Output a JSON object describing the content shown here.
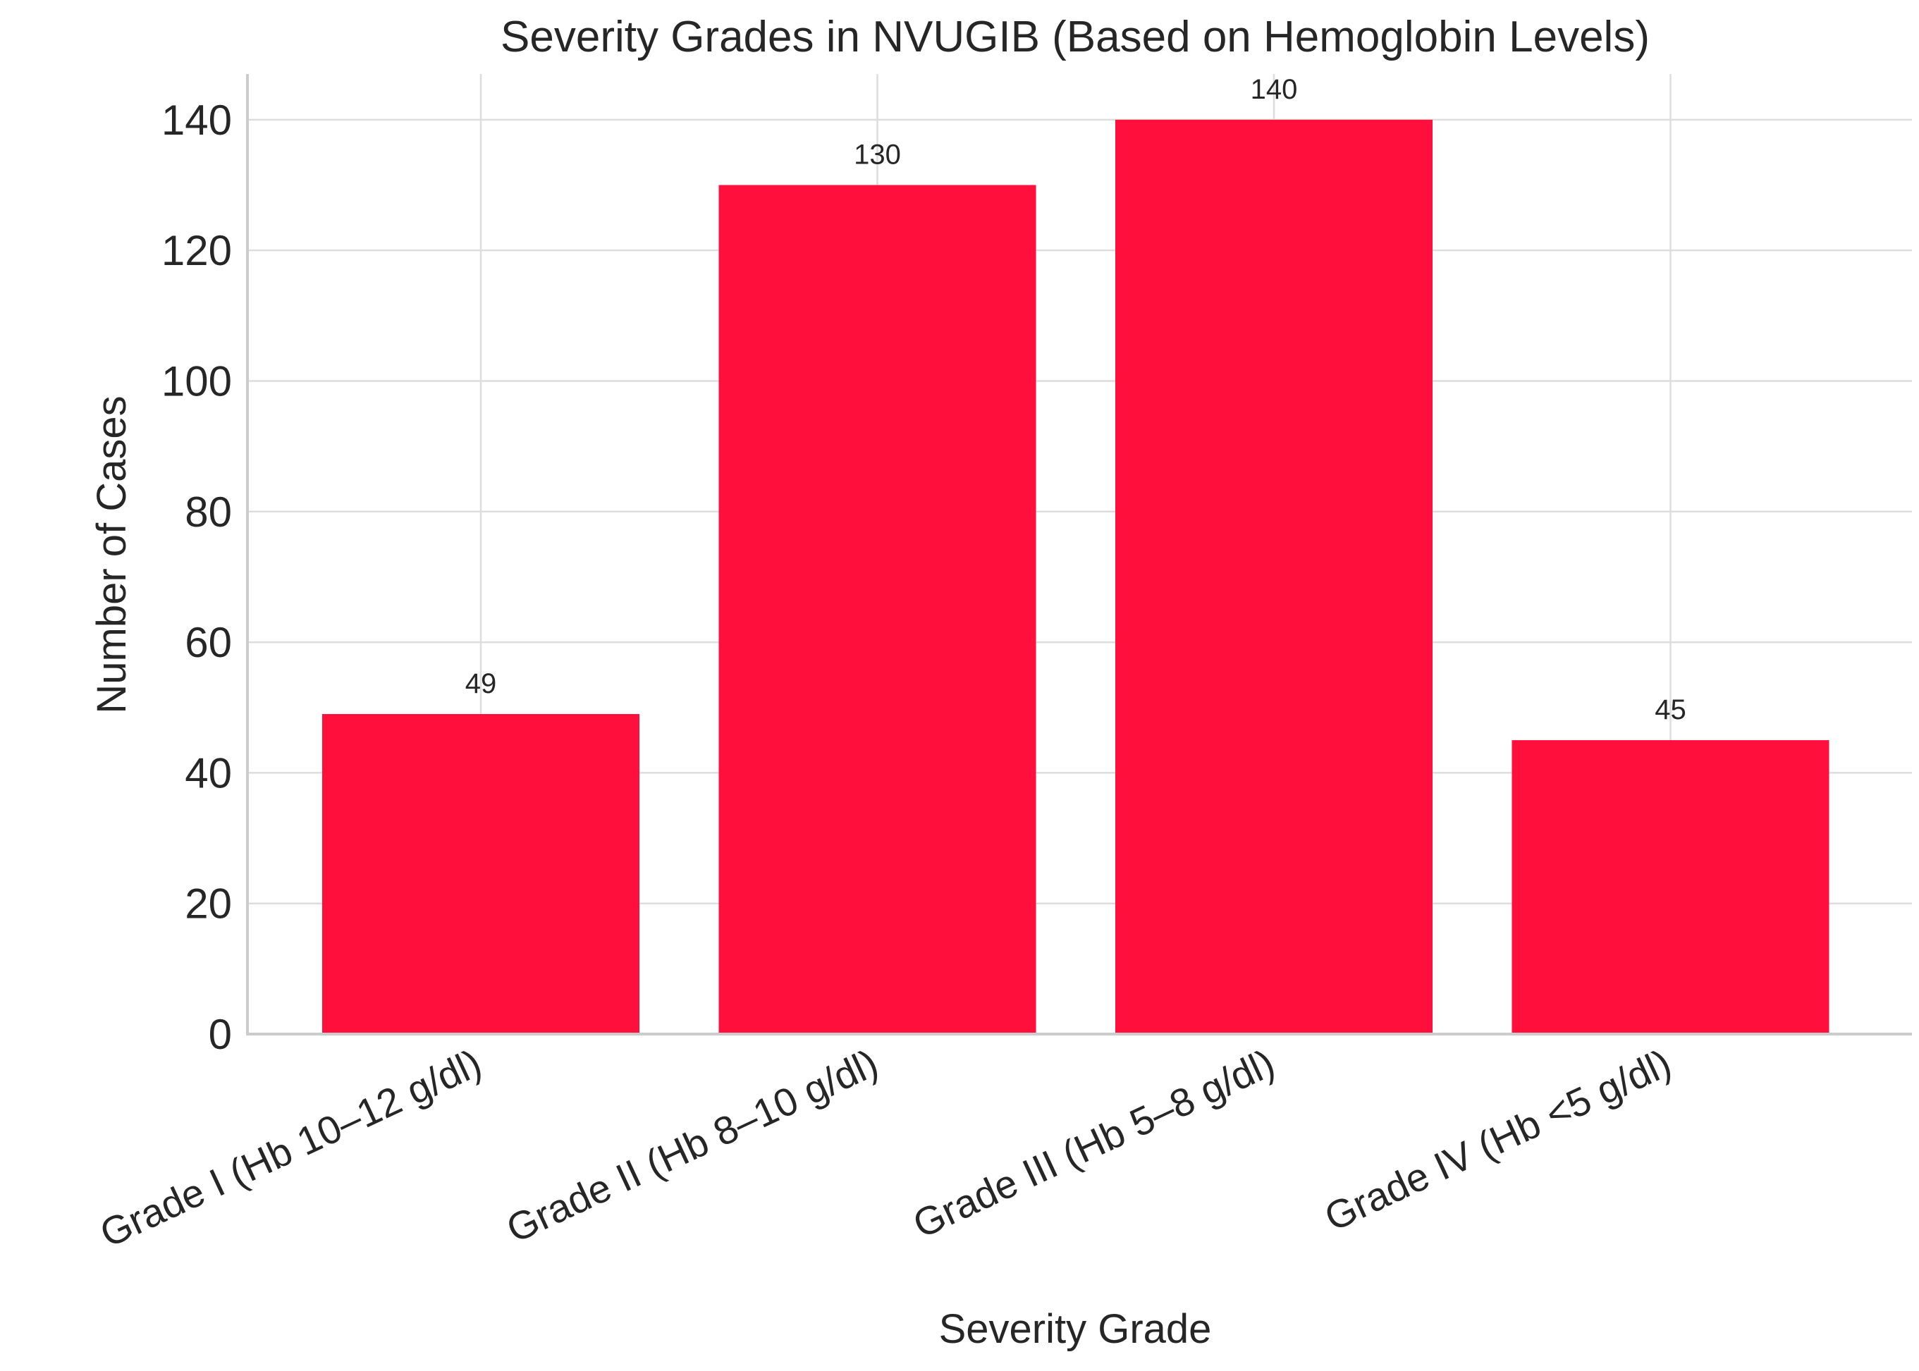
{
  "chart_data": {
    "type": "bar",
    "title": "Severity Grades in NVUGIB (Based on Hemoglobin Levels)",
    "xlabel": "Severity Grade",
    "ylabel": "Number of Cases",
    "categories": [
      "Grade I (Hb 10–12 g/dl)",
      "Grade II (Hb 8–10 g/dl)",
      "Grade III (Hb 5–8 g/dl)",
      "Grade IV (Hb <5 g/dl)"
    ],
    "values": [
      49,
      130,
      140,
      45
    ],
    "data_labels": [
      "49",
      "130",
      "140",
      "45"
    ],
    "ylim": [
      0,
      147
    ],
    "yticks": [
      0,
      20,
      40,
      60,
      80,
      100,
      120,
      140
    ],
    "ytick_labels": [
      "0",
      "20",
      "40",
      "60",
      "80",
      "100",
      "120",
      "140"
    ],
    "grid": true,
    "bar_color": "#ff0f3b"
  }
}
